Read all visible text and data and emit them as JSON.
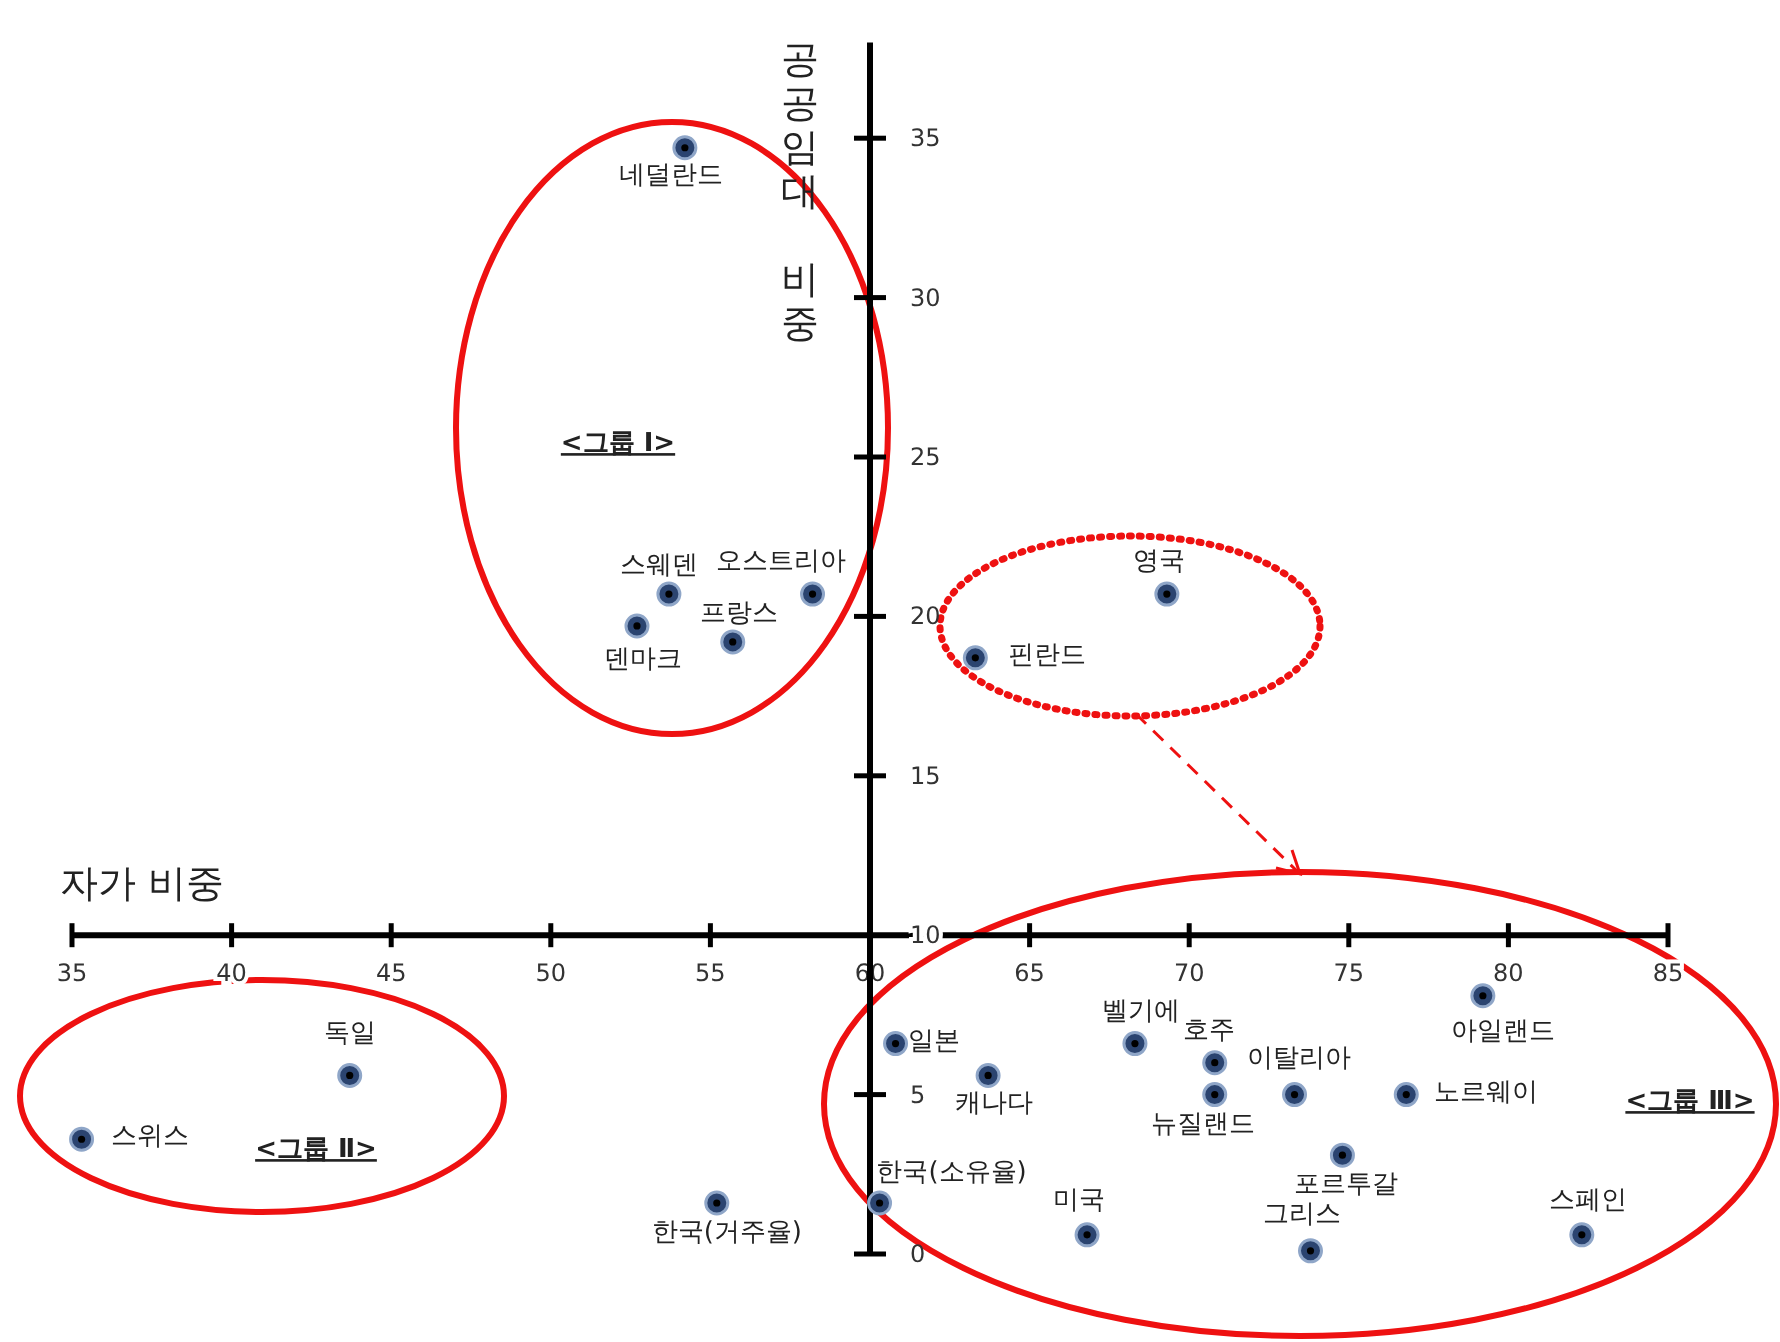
{
  "chart_data": {
    "type": "scatter",
    "xlabel": "자가 비중",
    "ylabel": "공공임대 비중",
    "marker": "circle",
    "grid": false,
    "xlim": [
      35,
      85
    ],
    "xticks": [
      35,
      40,
      45,
      50,
      55,
      60,
      65,
      70,
      75,
      80,
      85
    ],
    "ylim": [
      0,
      38
    ],
    "yticks": [
      0,
      5,
      10,
      15,
      20,
      25,
      30,
      35
    ],
    "series": [
      {
        "color": "#2b4470",
        "x": [
          54.2,
          53.7,
          58.2,
          52.7,
          55.7,
          69.3,
          63.3,
          43.7,
          35.3,
          55.2,
          60.3,
          60.8,
          63.7,
          68.3,
          70.8,
          70.8,
          73.3,
          76.8,
          79.2,
          74.8,
          73.8,
          66.8,
          82.3
        ],
        "values": [
          34.7,
          20.7,
          20.7,
          19.7,
          19.2,
          20.7,
          18.7,
          5.6,
          3.6,
          1.6,
          1.6,
          6.6,
          5.6,
          6.6,
          6.0,
          5.0,
          5.0,
          5.0,
          8.1,
          3.1,
          0.1,
          0.6,
          0.6
        ]
      }
    ],
    "annotations": [
      {
        "text": "네덜란드",
        "x": 54.2,
        "y": 34.7
      },
      {
        "text": "스웨덴",
        "x": 53.7,
        "y": 20.7
      },
      {
        "text": "오스트리아",
        "x": 58.2,
        "y": 20.7
      },
      {
        "text": "덴마크",
        "x": 52.7,
        "y": 19.7
      },
      {
        "text": "프랑스",
        "x": 55.7,
        "y": 19.2
      },
      {
        "text": "영국",
        "x": 69.3,
        "y": 20.7
      },
      {
        "text": "핀란드",
        "x": 63.3,
        "y": 18.7
      },
      {
        "text": "독일",
        "x": 43.7,
        "y": 5.6
      },
      {
        "text": "스위스",
        "x": 35.3,
        "y": 3.6
      },
      {
        "text": "한국(거주율)",
        "x": 55.2,
        "y": 1.6
      },
      {
        "text": "한국(소유율)",
        "x": 60.3,
        "y": 1.6
      },
      {
        "text": "일본",
        "x": 60.8,
        "y": 6.6
      },
      {
        "text": "캐나다",
        "x": 63.7,
        "y": 5.6
      },
      {
        "text": "벨기에",
        "x": 68.3,
        "y": 6.6
      },
      {
        "text": "호주",
        "x": 70.8,
        "y": 6.0
      },
      {
        "text": "뉴질랜드",
        "x": 70.8,
        "y": 5.0
      },
      {
        "text": "이탈리아",
        "x": 73.3,
        "y": 5.0
      },
      {
        "text": "노르웨이",
        "x": 76.8,
        "y": 5.0
      },
      {
        "text": "아일랜드",
        "x": 79.2,
        "y": 8.1
      },
      {
        "text": "포르투갈",
        "x": 74.8,
        "y": 3.1
      },
      {
        "text": "그리스",
        "x": 73.8,
        "y": 0.1
      },
      {
        "text": "미국",
        "x": 66.8,
        "y": 0.6
      },
      {
        "text": "스페인",
        "x": 82.3,
        "y": 0.6
      },
      "<그룹 Ⅰ>",
      "<그룹 Ⅱ>",
      "<그룹 Ⅲ>"
    ]
  }
}
